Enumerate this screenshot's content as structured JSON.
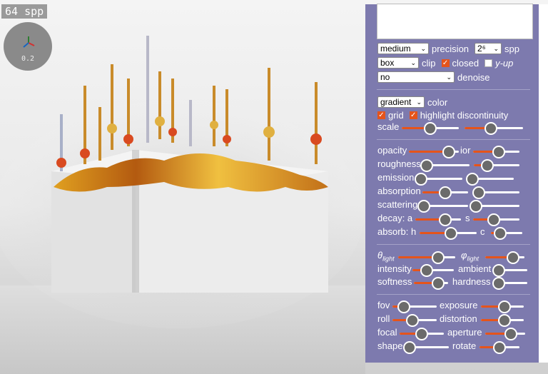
{
  "viewport": {
    "spp_badge": "64 spp",
    "gizmo_value": "0.2"
  },
  "panel": {
    "precision": {
      "value": "medium",
      "label": "precision"
    },
    "spp": {
      "value": "2⁶",
      "label": "spp"
    },
    "clip": {
      "value": "box",
      "label": "clip"
    },
    "closed": {
      "label": "closed",
      "checked": true
    },
    "yup": {
      "label": "y-up",
      "checked": false
    },
    "denoise": {
      "value": "no",
      "label": "denoise"
    },
    "color": {
      "value": "gradient",
      "label": "color"
    },
    "grid": {
      "label": "grid",
      "checked": true
    },
    "highlight": {
      "label": "highlight discontinuity",
      "checked": true
    },
    "labels": {
      "scale": "scale",
      "opacity": "opacity",
      "ior": "ior",
      "roughness": "roughness",
      "emission": "emission",
      "absorption": "absorption",
      "scattering": "scattering",
      "decay_a": "decay: a",
      "decay_s": "s",
      "absorb_h": "absorb: h",
      "absorb_c": "c",
      "theta_light": "θ",
      "phi_light": "φ",
      "light_sub": "light",
      "intensity": "intensity",
      "ambient": "ambient",
      "softness": "softness",
      "hardness": "hardness",
      "fov": "fov",
      "exposure": "exposure",
      "roll": "roll",
      "distortion": "distortion",
      "focal": "focal",
      "aperture": "aperture",
      "shape": "shape",
      "rotate": "rotate"
    },
    "sliders": {
      "scale_a": 0.5,
      "scale_b": 0.45,
      "opacity": 0.8,
      "ior": 0.55,
      "roughness": 0.0,
      "roughness_b": 0.3,
      "emission": 0.0,
      "emission_b": 0.0,
      "absorption": 0.5,
      "absorption_b": 0.0,
      "scattering": 0.0,
      "scattering_b": 0.0,
      "decay_a": 0.65,
      "decay_s": 0.45,
      "absorb_h": 0.55,
      "absorb_c": 0.3,
      "theta_light": 0.7,
      "phi_light": 0.7,
      "intensity": 0.35,
      "ambient": 0.0,
      "softness": 0.7,
      "hardness": 0.0,
      "fov": 0.25,
      "exposure": 0.55,
      "roll": 0.45,
      "distortion": 0.55,
      "focal": 0.5,
      "aperture": 0.65,
      "shape": 0.0,
      "rotate": 0.5
    }
  },
  "colors": {
    "panel_bg": "#7d7aae",
    "accent": "#e5541b",
    "knob": "#6b6b6b"
  }
}
